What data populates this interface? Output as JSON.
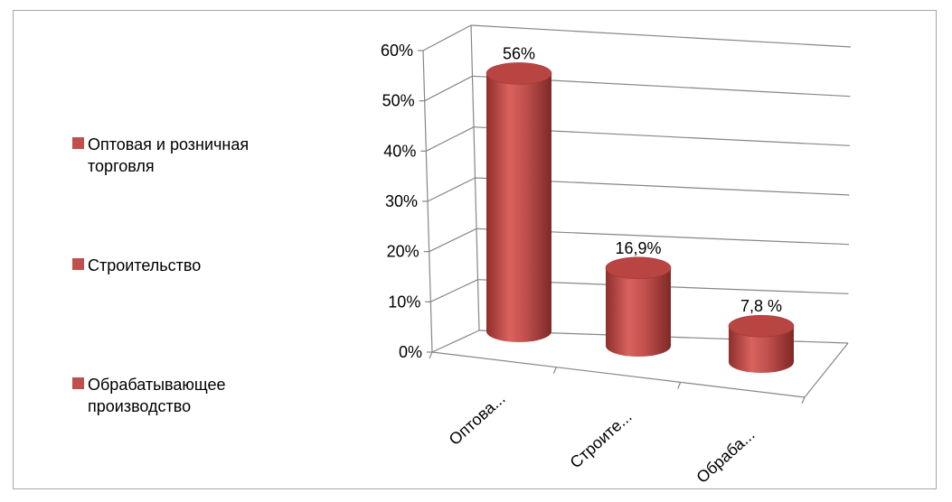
{
  "chart_data": {
    "type": "bar",
    "style": "3d-cylinder",
    "categories": [
      "Оптовая и розничная торговля",
      "Строительство",
      "Обрабатывающее производство"
    ],
    "category_tick_labels": [
      "Оптова...",
      "Строите...",
      "Обраба..."
    ],
    "values": [
      56,
      16.9,
      7.8
    ],
    "data_labels": [
      "56%",
      "16,9%",
      "7,8 %"
    ],
    "y_ticks": [
      "0%",
      "10%",
      "20%",
      "30%",
      "40%",
      "50%",
      "60%"
    ],
    "ylim": [
      0,
      60
    ],
    "grid": true,
    "legend_position": "left",
    "bar_color": "#c0504d"
  },
  "legend": [
    {
      "label": "Оптовая и розничная торговля",
      "color": "#c0504d"
    },
    {
      "label": "Строительство",
      "color": "#c0504d"
    },
    {
      "label": "Обрабатывающее производство",
      "color": "#c0504d"
    }
  ]
}
